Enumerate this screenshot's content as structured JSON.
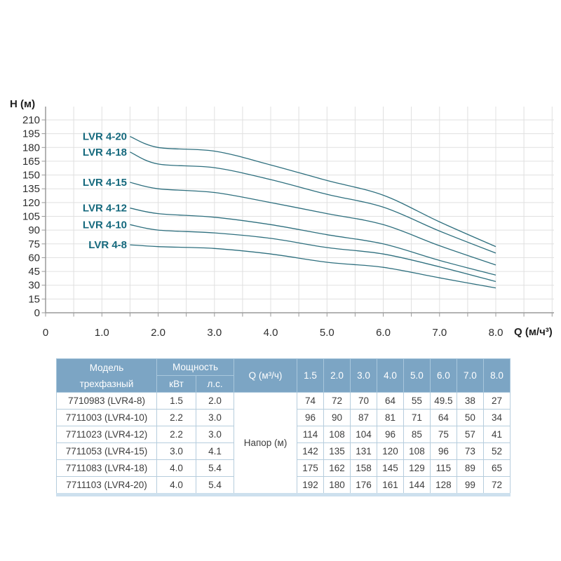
{
  "chart": {
    "y_axis_title": "H (м)",
    "x_axis_title": "Q (м/ч³)"
  },
  "chart_data": {
    "type": "line",
    "title": "",
    "xlabel": "Q (м/ч³)",
    "ylabel": "H (м)",
    "x": [
      1.5,
      2.0,
      3.0,
      4.0,
      5.0,
      6.0,
      7.0,
      8.0
    ],
    "series": [
      {
        "name": "LVR 4-8",
        "values": [
          74,
          72,
          70,
          64,
          55,
          49.5,
          38,
          27
        ]
      },
      {
        "name": "LVR 4-10",
        "values": [
          96,
          90,
          87,
          81,
          71,
          64,
          50,
          34
        ]
      },
      {
        "name": "LVR 4-12",
        "values": [
          114,
          108,
          104,
          96,
          85,
          75,
          57,
          41
        ]
      },
      {
        "name": "LVR 4-15",
        "values": [
          142,
          135,
          131,
          120,
          108,
          96,
          73,
          52
        ]
      },
      {
        "name": "LVR 4-18",
        "values": [
          175,
          162,
          158,
          145,
          129,
          115,
          89,
          65
        ]
      },
      {
        "name": "LVR 4-20",
        "values": [
          192,
          180,
          176,
          161,
          144,
          128,
          99,
          72
        ]
      }
    ],
    "xlim": [
      0,
      9
    ],
    "ylim": [
      0,
      210
    ],
    "x_tick_labels": [
      "0",
      "1.0",
      "2.0",
      "3.0",
      "4.0",
      "5.0",
      "6.0",
      "7.0",
      "8.0"
    ],
    "x_minor_tick_step": 0.5,
    "y_tick_step": 15,
    "grid": true,
    "legend_position": "inline-left-labels"
  },
  "table": {
    "header": {
      "model_line1": "Модель",
      "model_line2": "трехфазный",
      "power": "Мощность",
      "kw": "кВт",
      "hp": "л.с.",
      "q": "Q (м³/ч)",
      "q_values": [
        "1.5",
        "2.0",
        "3.0",
        "4.0",
        "5.0",
        "6.0",
        "7.0",
        "8.0"
      ],
      "merged_label": "Напор (м)"
    },
    "rows": [
      {
        "model": "7710983 (LVR4-8)",
        "kw": "1.5",
        "hp": "2.0",
        "values": [
          "74",
          "72",
          "70",
          "64",
          "55",
          "49.5",
          "38",
          "27"
        ]
      },
      {
        "model": "7711003 (LVR4-10)",
        "kw": "2.2",
        "hp": "3.0",
        "values": [
          "96",
          "90",
          "87",
          "81",
          "71",
          "64",
          "50",
          "34"
        ]
      },
      {
        "model": "7711023 (LVR4-12)",
        "kw": "2.2",
        "hp": "3.0",
        "values": [
          "114",
          "108",
          "104",
          "96",
          "85",
          "75",
          "57",
          "41"
        ]
      },
      {
        "model": "7711053 (LVR4-15)",
        "kw": "3.0",
        "hp": "4.1",
        "values": [
          "142",
          "135",
          "131",
          "120",
          "108",
          "96",
          "73",
          "52"
        ]
      },
      {
        "model": "7711083 (LVR4-18)",
        "kw": "4.0",
        "hp": "5.4",
        "values": [
          "175",
          "162",
          "158",
          "145",
          "129",
          "115",
          "89",
          "65"
        ]
      },
      {
        "model": "7711103 (LVR4-20)",
        "kw": "4.0",
        "hp": "5.4",
        "values": [
          "192",
          "180",
          "176",
          "161",
          "144",
          "128",
          "99",
          "72"
        ]
      }
    ]
  },
  "colors": {
    "curve": "#2e6f7e",
    "curve_label": "#15697d",
    "grid": "#e0e0e0",
    "axis": "#9a9a9a",
    "tick_text": "#2f2f2f",
    "table_header_bg": "#7ca5c4",
    "table_header_text": "#ffffff",
    "table_header_border": "#a9c7dc",
    "table_border": "#b6cddd",
    "table_bottom_strip": "#cde0ee",
    "table_body_text": "#3d3d3d"
  }
}
